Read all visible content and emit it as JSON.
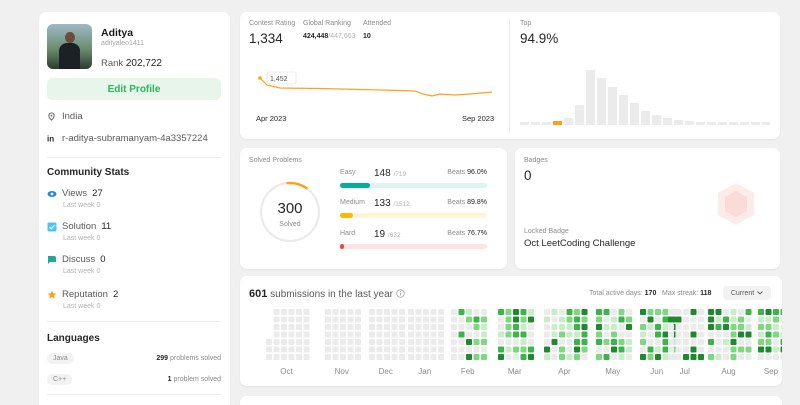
{
  "profile": {
    "name": "Aditya",
    "username": "adityaleo1411",
    "rank_label": "Rank",
    "rank_value": "202,722",
    "edit_label": "Edit Profile",
    "location": "India",
    "linkedin": "r-aditya-subramanyam-4a3357224"
  },
  "community": {
    "title": "Community Stats",
    "stats": [
      {
        "label": "Views",
        "value": "27",
        "sub": "Last week 0",
        "icon": "eye-icon",
        "color": "#1e88e5"
      },
      {
        "label": "Solution",
        "value": "11",
        "sub": "Last week 0",
        "icon": "check-icon",
        "color": "#4fc3f7"
      },
      {
        "label": "Discuss",
        "value": "0",
        "sub": "Last week 0",
        "icon": "discuss-icon",
        "color": "#26a69a"
      },
      {
        "label": "Reputation",
        "value": "2",
        "sub": "Last week 0",
        "icon": "star-icon",
        "color": "#ffa116"
      }
    ]
  },
  "languages": {
    "title": "Languages",
    "items": [
      {
        "name": "Java",
        "count": "299",
        "suffix": "problems solved"
      },
      {
        "name": "C++",
        "count": "1",
        "suffix": "problem solved"
      }
    ]
  },
  "contest": {
    "rating_label": "Contest Rating",
    "rating_value": "1,334",
    "global_label": "Global Ranking",
    "global_value": "424,448",
    "global_total": "/447,663",
    "attended_label": "Attended",
    "attended_value": "10",
    "tooltip": "1,452",
    "start_label": "Apr 2023",
    "end_label": "Sep 2023",
    "line_color": "#ffa116"
  },
  "top": {
    "label": "Top",
    "value": "94.9%",
    "highlight_color": "#ffa116"
  },
  "solved": {
    "total_label": "Solved Problems",
    "total": "300",
    "total_sub": "Solved",
    "difficulties": [
      {
        "name": "Easy",
        "solved": "148",
        "total": "/719",
        "beats_label": "Beats",
        "beats": "96.0%",
        "fraction": 0.206,
        "color": "#00af9b",
        "track": "#dbf5ef"
      },
      {
        "name": "Medium",
        "solved": "133",
        "total": "/1512",
        "beats_label": "Beats",
        "beats": "89.8%",
        "fraction": 0.088,
        "color": "#ffb800",
        "track": "#fff4d6"
      },
      {
        "name": "Hard",
        "solved": "19",
        "total": "/632",
        "beats_label": "Beats",
        "beats": "76.7%",
        "fraction": 0.03,
        "color": "#ef4743",
        "track": "#fde3e2"
      }
    ]
  },
  "badges": {
    "label": "Badges",
    "count": "0",
    "locked_label": "Locked Badge",
    "locked_name": "Oct LeetCoding Challenge"
  },
  "submissions": {
    "count": "601",
    "text": "submissions in the last year",
    "active_label": "Total active days:",
    "active_value": "170",
    "streak_label": "Max streak:",
    "streak_value": "118",
    "dropdown": "Current",
    "months": [
      "Oct",
      "Nov",
      "Dec",
      "Jan",
      "Feb",
      "Mar",
      "Apr",
      "May",
      "Jun",
      "Jul",
      "Aug",
      "Sep"
    ]
  }
}
